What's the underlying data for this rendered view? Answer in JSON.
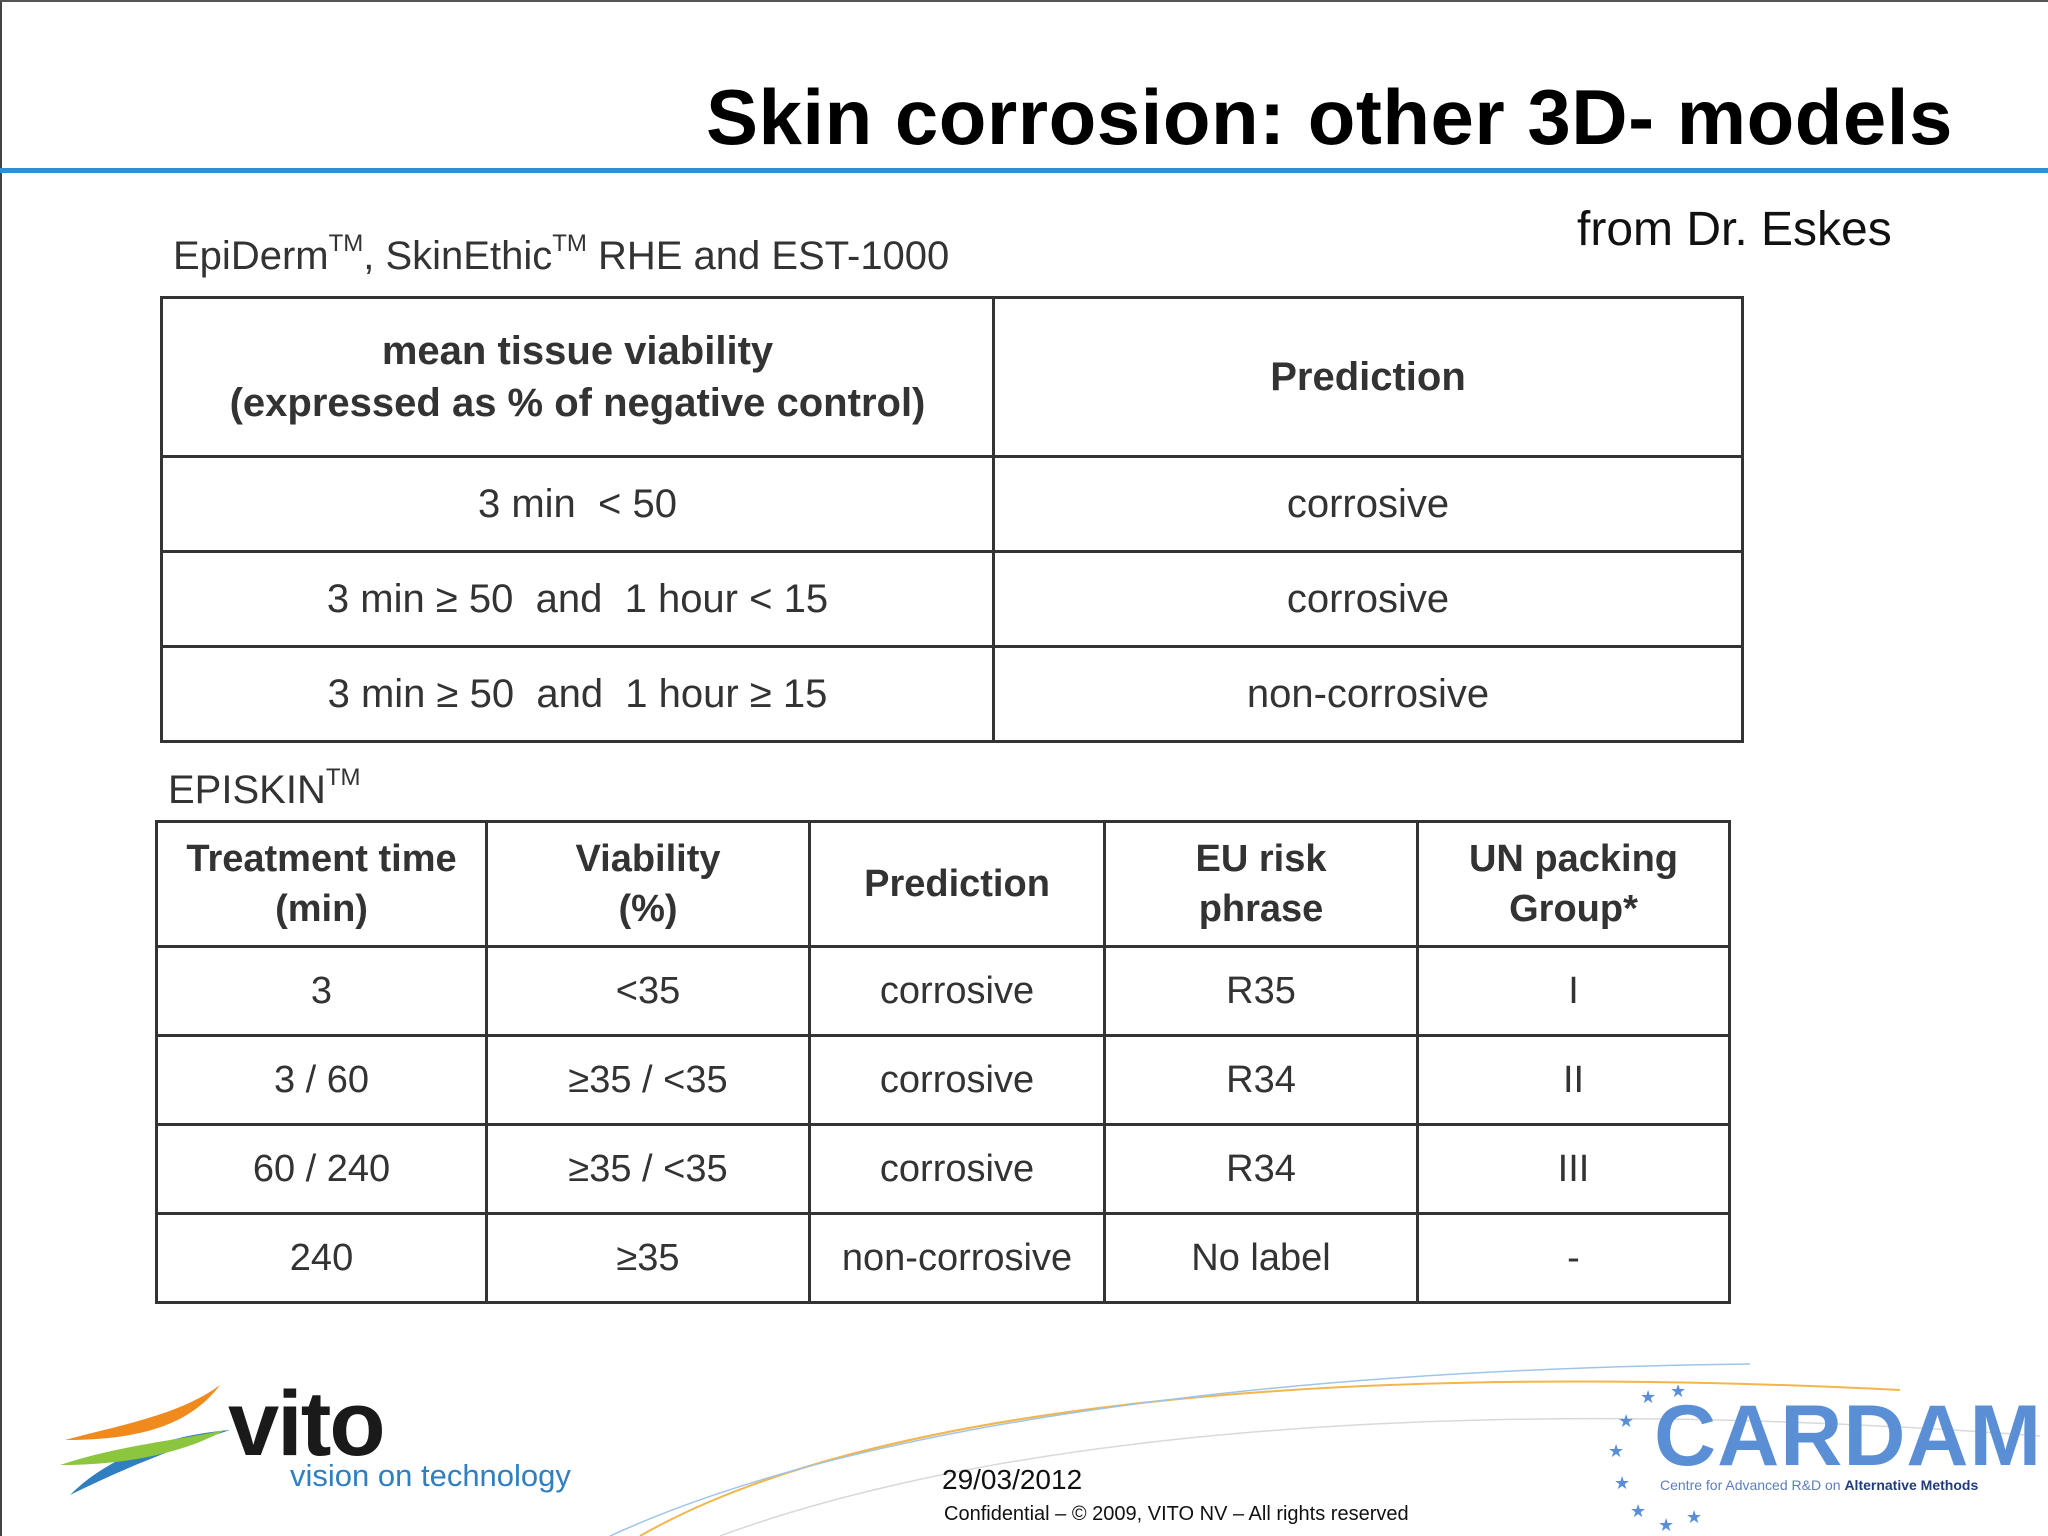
{
  "slide": {
    "title": "Skin corrosion: other 3D- models",
    "credit": "from Dr. Eskes"
  },
  "table1": {
    "caption_parts": [
      "EpiDerm",
      "TM",
      ", SkinEthic",
      "TM",
      " RHE and EST-1000"
    ],
    "headers": [
      "mean tissue viability\n(expressed as % of negative control)",
      "Prediction"
    ],
    "rows": [
      [
        "3 min  < 50",
        "corrosive"
      ],
      [
        "3 min ≥ 50  and  1 hour < 15",
        "corrosive"
      ],
      [
        "3 min ≥ 50  and  1 hour ≥ 15",
        "non-corrosive"
      ]
    ]
  },
  "table2": {
    "caption_parts": [
      "EPISKIN",
      "TM"
    ],
    "headers": [
      "Treatment time\n(min)",
      "Viability\n(%)",
      "Prediction",
      "EU risk\nphrase",
      "UN packing\nGroup*"
    ],
    "rows": [
      [
        "3",
        "<35",
        "corrosive",
        "R35",
        "I"
      ],
      [
        "3 / 60",
        "≥35 / <35",
        "corrosive",
        "R34",
        "II"
      ],
      [
        "60 / 240",
        "≥35 / <35",
        "corrosive",
        "R34",
        "III"
      ],
      [
        "240",
        "≥35",
        "non-corrosive",
        "No label",
        "-"
      ]
    ]
  },
  "footer": {
    "vito_logo": {
      "word": "vito",
      "tagline": "vision on technology"
    },
    "date": "29/03/2012",
    "confidential": "Confidential – © 2009, VITO NV – All rights reserved",
    "cardam_logo": {
      "word": "CARDAM",
      "tagline_plain": "Centre for Advanced R&D on ",
      "tagline_bold": "Alternative Methods"
    }
  },
  "colors": {
    "title_rule": "#2f8fd3",
    "vito_orange": "#f08a1c",
    "vito_blue": "#2f7fc1",
    "vito_green": "#8cc63f",
    "cardam_blue": "#5a8fd6",
    "arc_orange": "#f2b64a"
  }
}
